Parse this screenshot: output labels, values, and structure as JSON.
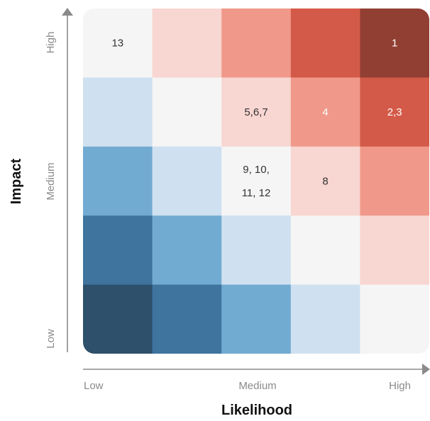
{
  "chart_data": {
    "type": "heatmap",
    "title": "",
    "xlabel": "Likelihood",
    "ylabel": "Impact",
    "x_ticks": [
      "Low",
      "Medium",
      "High"
    ],
    "y_ticks": [
      "Low",
      "Medium",
      "High"
    ],
    "rows": 5,
    "cols": 5,
    "row_order": "top-to-bottom (High impact to Low impact)",
    "col_order": "left-to-right (Low likelihood to High likelihood)",
    "colors": {
      "axis": "#8a8a8a",
      "grid_line": "#ffffff",
      "cell_text_dark": "#333333",
      "cell_text_light": "#ffffff"
    },
    "cells": [
      [
        {
          "fill": "#f5f5f5",
          "label": "13",
          "light_text": false
        },
        {
          "fill": "#f8d6d1",
          "label": "",
          "light_text": false
        },
        {
          "fill": "#f0998a",
          "label": "",
          "light_text": false
        },
        {
          "fill": "#d35a48",
          "label": "",
          "light_text": true
        },
        {
          "fill": "#923f33",
          "label": "1",
          "light_text": true
        }
      ],
      [
        {
          "fill": "#cfe0f0",
          "label": "",
          "light_text": false
        },
        {
          "fill": "#f5f5f5",
          "label": "",
          "light_text": false
        },
        {
          "fill": "#f8d6d1",
          "label": "5,6,7",
          "light_text": false
        },
        {
          "fill": "#f0998a",
          "label": "4",
          "light_text": true
        },
        {
          "fill": "#d35a48",
          "label": "2,3",
          "light_text": true
        }
      ],
      [
        {
          "fill": "#72abd1",
          "label": "",
          "light_text": false
        },
        {
          "fill": "#cfe0f0",
          "label": "",
          "light_text": false
        },
        {
          "fill": "#f5f5f5",
          "label": "9, 10,\n11, 12",
          "light_text": false
        },
        {
          "fill": "#f8d6d1",
          "label": "8",
          "light_text": false
        },
        {
          "fill": "#f0998a",
          "label": "",
          "light_text": false
        }
      ],
      [
        {
          "fill": "#3e749e",
          "label": "",
          "light_text": false
        },
        {
          "fill": "#72abd1",
          "label": "",
          "light_text": false
        },
        {
          "fill": "#cfe0f0",
          "label": "",
          "light_text": false
        },
        {
          "fill": "#f5f5f5",
          "label": "",
          "light_text": false
        },
        {
          "fill": "#f8d6d1",
          "label": "",
          "light_text": false
        }
      ],
      [
        {
          "fill": "#2e506b",
          "label": "",
          "light_text": false
        },
        {
          "fill": "#3e749e",
          "label": "",
          "light_text": false
        },
        {
          "fill": "#72abd1",
          "label": "",
          "light_text": false
        },
        {
          "fill": "#cfe0f0",
          "label": "",
          "light_text": false
        },
        {
          "fill": "#f5f5f5",
          "label": "",
          "light_text": false
        }
      ]
    ]
  }
}
